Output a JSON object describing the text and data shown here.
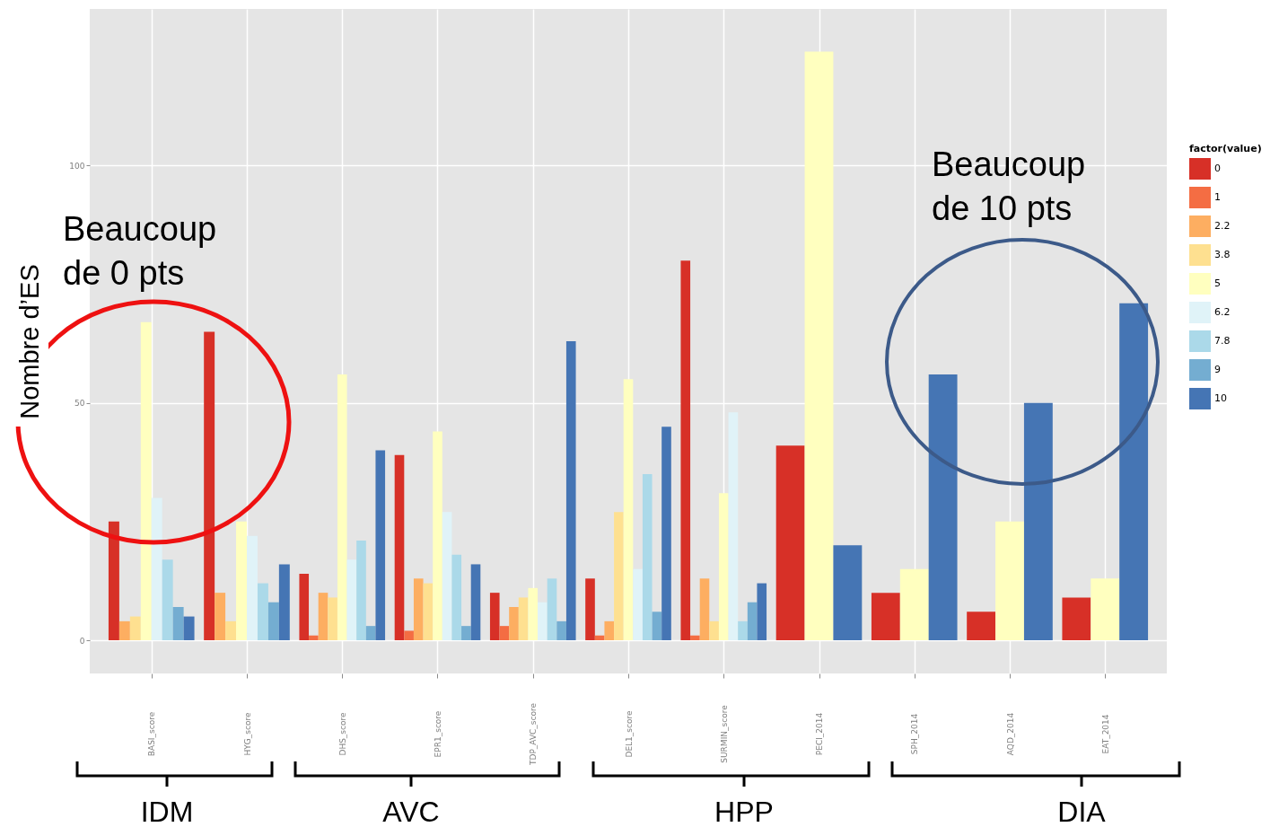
{
  "chart_data": {
    "type": "bar",
    "ylabel": "Nombre d’ES",
    "legend_title": "factor(value)",
    "legend": "right",
    "categories": [
      "BASI_score",
      "HYG_score",
      "DHS_score",
      "EPR1_score",
      "TDP_AVC_score",
      "DEL1_score",
      "SURMIN_score",
      "PECI_2014",
      "SPH_2014",
      "AQD_2014",
      "EAT_2014"
    ],
    "series": [
      {
        "name": "0",
        "color": "#d73027",
        "values": [
          25,
          65,
          14,
          39,
          10,
          13,
          80,
          41,
          10,
          6,
          9
        ]
      },
      {
        "name": "1",
        "color": "#f46d43",
        "values": [
          null,
          null,
          1,
          2,
          3,
          1,
          1,
          null,
          null,
          null,
          null
        ]
      },
      {
        "name": "2.2",
        "color": "#fdae61",
        "values": [
          4,
          10,
          10,
          13,
          7,
          4,
          13,
          null,
          null,
          null,
          null
        ]
      },
      {
        "name": "3.8",
        "color": "#fee090",
        "values": [
          5,
          4,
          9,
          12,
          9,
          27,
          4,
          null,
          null,
          null,
          null
        ]
      },
      {
        "name": "5",
        "color": "#ffffbf",
        "values": [
          67,
          25,
          56,
          44,
          11,
          55,
          31,
          124,
          15,
          25,
          13
        ]
      },
      {
        "name": "6.2",
        "color": "#e0f3f8",
        "values": [
          30,
          22,
          17,
          27,
          8,
          15,
          48,
          null,
          null,
          null,
          null
        ]
      },
      {
        "name": "7.8",
        "color": "#abd9e9",
        "values": [
          17,
          12,
          21,
          18,
          13,
          35,
          4,
          null,
          null,
          null,
          null
        ]
      },
      {
        "name": "9",
        "color": "#74add1",
        "values": [
          7,
          8,
          3,
          3,
          4,
          6,
          8,
          null,
          null,
          null,
          null
        ]
      },
      {
        "name": "10",
        "color": "#4575b4",
        "values": [
          5,
          16,
          40,
          16,
          63,
          45,
          12,
          20,
          56,
          50,
          71
        ]
      }
    ],
    "ylim": [
      -7,
      133
    ],
    "yticks": [
      0,
      50,
      100
    ],
    "grid": true,
    "annotations": [
      "Beaucoup\nde 0 pts",
      "Beaucoup\nde 10 pts",
      "IDM",
      "AVC",
      "HPP",
      "DIA"
    ]
  }
}
